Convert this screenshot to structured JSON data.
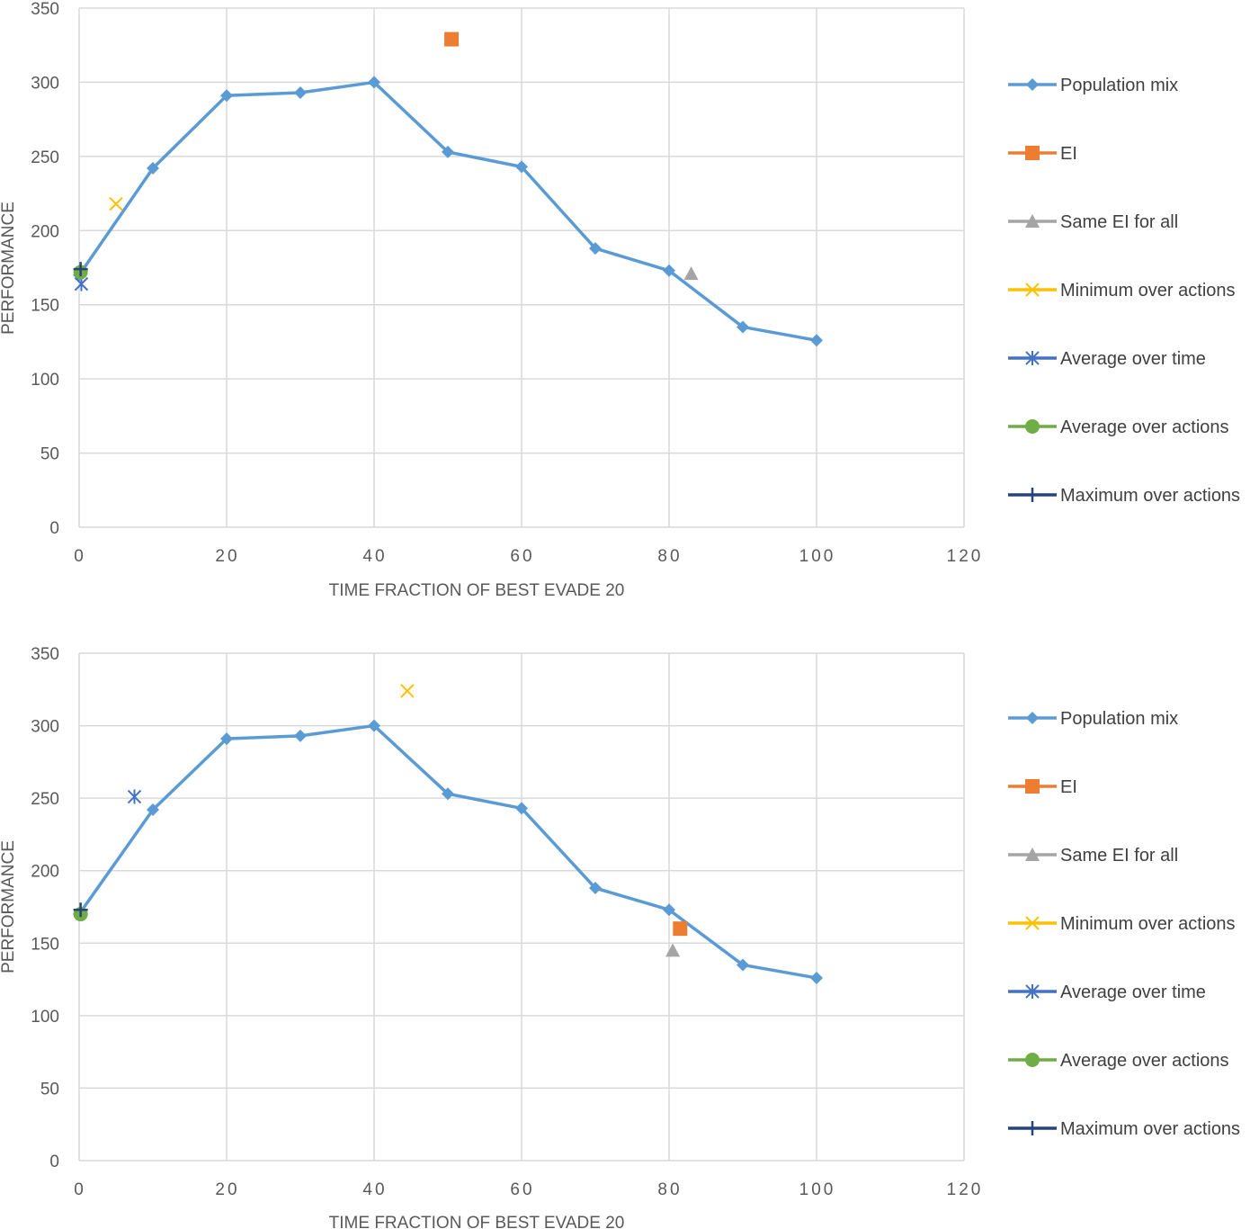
{
  "colors": {
    "population_mix": "#5b9bd5",
    "ei": "#ed7d31",
    "same_ei": "#a5a5a5",
    "minimum": "#ffc000",
    "avg_time": "#4472c4",
    "avg_actions": "#70ad47",
    "maximum": "#264478",
    "grid": "#d9d9d9",
    "text": "#595959"
  },
  "chart_data": [
    {
      "type": "line",
      "title": "",
      "xlabel": "TIME FRACTION OF BEST EVADE 20",
      "ylabel": "PERFORMANCE",
      "xlim": [
        0,
        120
      ],
      "ylim": [
        0,
        350
      ],
      "xticks": [
        "0",
        "20",
        "40",
        "60",
        "80",
        "100",
        "120"
      ],
      "yticks": [
        "0",
        "50",
        "100",
        "150",
        "200",
        "250",
        "300",
        "350"
      ],
      "grid": true,
      "legend_position": "right",
      "series": [
        {
          "name": "Population mix",
          "marker": "diamond",
          "color": "#5b9bd5",
          "x": [
            0,
            10,
            20,
            30,
            40,
            50,
            60,
            70,
            80,
            90,
            100
          ],
          "y": [
            170,
            242,
            291,
            293,
            300,
            253,
            243,
            188,
            173,
            135,
            126
          ]
        },
        {
          "name": "EI",
          "marker": "square",
          "color": "#ed7d31",
          "x": [
            50.5
          ],
          "y": [
            329
          ]
        },
        {
          "name": "Same EI for all",
          "marker": "triangle",
          "color": "#a5a5a5",
          "x": [
            83
          ],
          "y": [
            171
          ]
        },
        {
          "name": "Minimum over actions",
          "marker": "x",
          "color": "#ffc000",
          "x": [
            5
          ],
          "y": [
            218
          ]
        },
        {
          "name": "Average over time",
          "marker": "star",
          "color": "#4472c4",
          "x": [
            0.3
          ],
          "y": [
            164
          ]
        },
        {
          "name": "Average over actions",
          "marker": "circle",
          "color": "#70ad47",
          "x": [
            0.2
          ],
          "y": [
            172
          ]
        },
        {
          "name": "Maximum over actions",
          "marker": "plus",
          "color": "#264478",
          "x": [
            0.2
          ],
          "y": [
            174
          ]
        }
      ]
    },
    {
      "type": "line",
      "title": "",
      "xlabel": "TIME FRACTION OF BEST EVADE 20",
      "ylabel": "PERFORMANCE",
      "xlim": [
        0,
        120
      ],
      "ylim": [
        0,
        350
      ],
      "xticks": [
        "0",
        "20",
        "40",
        "60",
        "80",
        "100",
        "120"
      ],
      "yticks": [
        "0",
        "50",
        "100",
        "150",
        "200",
        "250",
        "300",
        "350"
      ],
      "grid": true,
      "legend_position": "right",
      "series": [
        {
          "name": "Population mix",
          "marker": "diamond",
          "color": "#5b9bd5",
          "x": [
            0,
            10,
            20,
            30,
            40,
            50,
            60,
            70,
            80,
            90,
            100
          ],
          "y": [
            170,
            242,
            291,
            293,
            300,
            253,
            243,
            188,
            173,
            135,
            126
          ]
        },
        {
          "name": "EI",
          "marker": "square",
          "color": "#ed7d31",
          "x": [
            81.5
          ],
          "y": [
            160
          ]
        },
        {
          "name": "Same EI for all",
          "marker": "triangle",
          "color": "#a5a5a5",
          "x": [
            80.5
          ],
          "y": [
            145
          ]
        },
        {
          "name": "Minimum over actions",
          "marker": "x",
          "color": "#ffc000",
          "x": [
            44.5
          ],
          "y": [
            324
          ]
        },
        {
          "name": "Average over time",
          "marker": "star",
          "color": "#4472c4",
          "x": [
            7.5
          ],
          "y": [
            251
          ]
        },
        {
          "name": "Average over actions",
          "marker": "circle",
          "color": "#70ad47",
          "x": [
            0.2
          ],
          "y": [
            170
          ]
        },
        {
          "name": "Maximum over actions",
          "marker": "plus",
          "color": "#264478",
          "x": [
            0.2
          ],
          "y": [
            173
          ]
        }
      ]
    }
  ]
}
